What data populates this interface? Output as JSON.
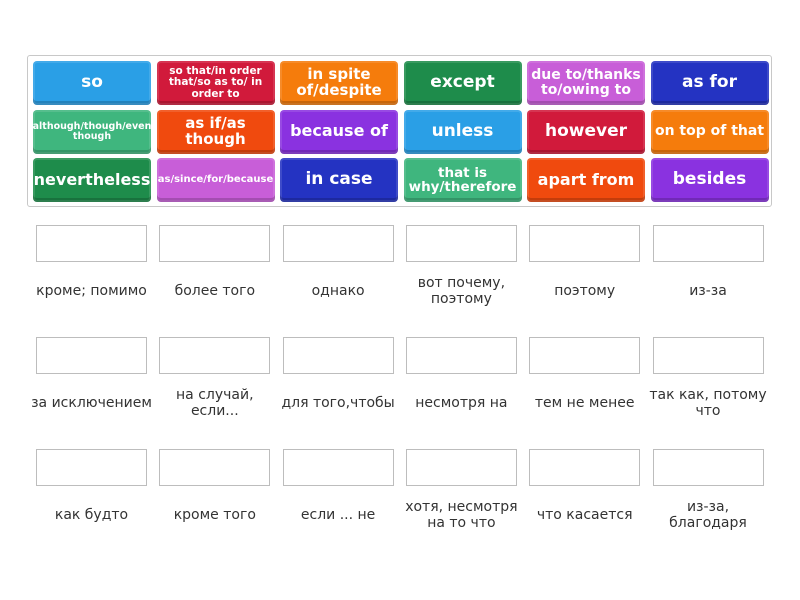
{
  "tiles": [
    {
      "text": "so",
      "color": "#2a9fe6",
      "size": 17
    },
    {
      "text": "so that/in order that/so as to/ in order to",
      "color": "#d11a3b",
      "size": 10.5
    },
    {
      "text": "in spite of/despite",
      "color": "#f57c0c",
      "size": 15
    },
    {
      "text": "except",
      "color": "#1e8c4b",
      "size": 17
    },
    {
      "text": "due to/thanks to/owing to",
      "color": "#c85ed8",
      "size": 14
    },
    {
      "text": "as for",
      "color": "#2433c2",
      "size": 17
    },
    {
      "text": "although/though/even though",
      "color": "#3fb67e",
      "size": 9.5
    },
    {
      "text": "as if/as though",
      "color": "#f04a0e",
      "size": 15
    },
    {
      "text": "because of",
      "color": "#8a32e0",
      "size": 16
    },
    {
      "text": "unless",
      "color": "#2a9fe6",
      "size": 17
    },
    {
      "text": "however",
      "color": "#d11a3b",
      "size": 17
    },
    {
      "text": "on top of that",
      "color": "#f57c0c",
      "size": 14
    },
    {
      "text": "nevertheless",
      "color": "#1e8c4b",
      "size": 16
    },
    {
      "text": "as/since/for/because",
      "color": "#c85ed8",
      "size": 10
    },
    {
      "text": "in case",
      "color": "#2433c2",
      "size": 17
    },
    {
      "text": "that is why/therefore",
      "color": "#3fb67e",
      "size": 13.5
    },
    {
      "text": "apart from",
      "color": "#f04a0e",
      "size": 16
    },
    {
      "text": "besides",
      "color": "#8a32e0",
      "size": 17
    }
  ],
  "targets": [
    "кроме; помимо",
    "более того",
    "однако",
    "вот почему, поэтому",
    "поэтому",
    "из-за",
    "за исключением",
    "на случай, если...",
    "для того,чтобы",
    "несмотря на",
    "тем не менее",
    "так как, потому что",
    "как будто",
    "кроме того",
    "если ... не",
    "хотя, несмотря на то что",
    "что касается",
    "из-за, благодаря"
  ]
}
